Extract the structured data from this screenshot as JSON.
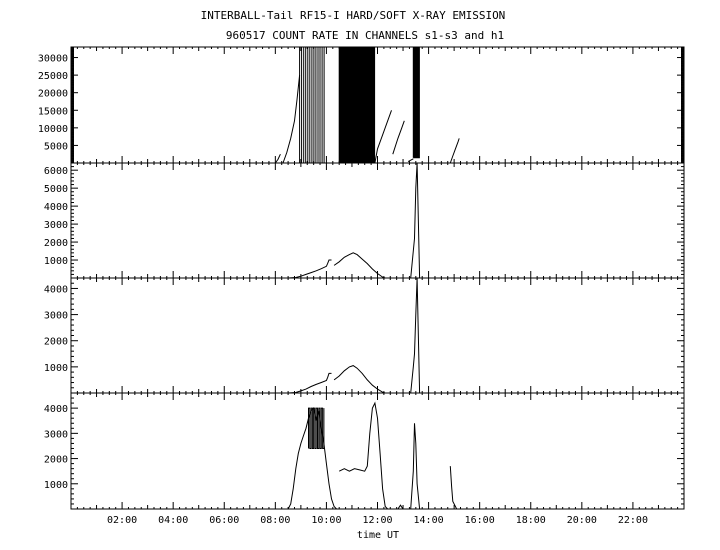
{
  "chart_data": {
    "type": "line",
    "title": "INTERBALL-Tail RF15-I HARD/SOFT X-RAY EMISSION",
    "subtitle": "960517  COUNT RATE IN CHANNELS s1-s3 and h1",
    "xlabel": "time UT",
    "x_unit": "hours UT",
    "xlim": [
      0,
      24
    ],
    "x_ticks": [
      {
        "value": 2,
        "label": "02:00"
      },
      {
        "value": 4,
        "label": "04:00"
      },
      {
        "value": 6,
        "label": "06:00"
      },
      {
        "value": 8,
        "label": "08:00"
      },
      {
        "value": 10,
        "label": "10:00"
      },
      {
        "value": 12,
        "label": "12:00"
      },
      {
        "value": 14,
        "label": "14:00"
      },
      {
        "value": 16,
        "label": "16:00"
      },
      {
        "value": 18,
        "label": "18:00"
      },
      {
        "value": 20,
        "label": "20:00"
      },
      {
        "value": 22,
        "label": "22:00"
      }
    ],
    "panels": [
      {
        "ylim": [
          0,
          33000
        ],
        "y_ticks": [
          5000,
          10000,
          15000,
          20000,
          25000,
          30000
        ],
        "segments": [
          [
            [
              8.0,
              0
            ],
            [
              8.1,
              1000
            ],
            [
              8.2,
              2500
            ]
          ],
          [
            [
              8.3,
              0
            ],
            [
              8.45,
              3000
            ],
            [
              8.6,
              7000
            ],
            [
              8.75,
              12000
            ],
            [
              8.85,
              18000
            ],
            [
              8.95,
              25000
            ]
          ],
          [
            [
              11.9,
              0
            ],
            [
              12.0,
              4000
            ],
            [
              12.2,
              8000
            ],
            [
              12.4,
              12000
            ],
            [
              12.55,
              15000
            ]
          ],
          [
            [
              12.6,
              2500
            ],
            [
              12.8,
              7000
            ],
            [
              12.95,
              10000
            ],
            [
              13.05,
              12000
            ]
          ],
          [
            [
              13.2,
              400
            ],
            [
              13.3,
              800
            ],
            [
              13.4,
              1200
            ]
          ],
          [
            [
              14.85,
              0
            ],
            [
              14.95,
              2000
            ],
            [
              15.05,
              4000
            ],
            [
              15.15,
              6000
            ],
            [
              15.2,
              7000
            ]
          ]
        ],
        "saturated_bands": [
          {
            "start": 8.95,
            "end": 9.95,
            "spacing": 0.08,
            "min": 0,
            "max": 33000
          },
          {
            "start": 10.5,
            "end": 11.9,
            "spacing": 0.018,
            "min": 0,
            "max": 33000
          },
          {
            "start": 13.4,
            "end": 13.65,
            "spacing": 0.02,
            "min": 1500,
            "max": 33000
          }
        ]
      },
      {
        "ylim": [
          0,
          6400
        ],
        "y_ticks": [
          1000,
          2000,
          3000,
          4000,
          5000,
          6000
        ],
        "segments": [
          [
            [
              8.5,
              0
            ],
            [
              8.8,
              30
            ],
            [
              9.0,
              100
            ],
            [
              9.2,
              200
            ],
            [
              9.4,
              300
            ],
            [
              9.6,
              400
            ],
            [
              9.8,
              520
            ],
            [
              10.0,
              650
            ],
            [
              10.05,
              820
            ],
            [
              10.1,
              1000
            ],
            [
              10.2,
              1000
            ]
          ],
          [
            [
              10.3,
              700
            ],
            [
              10.5,
              900
            ],
            [
              10.7,
              1150
            ],
            [
              10.9,
              1300
            ],
            [
              11.05,
              1400
            ],
            [
              11.2,
              1300
            ],
            [
              11.4,
              1050
            ],
            [
              11.6,
              800
            ],
            [
              11.8,
              500
            ],
            [
              12.0,
              250
            ],
            [
              12.2,
              50
            ],
            [
              12.3,
              0
            ]
          ],
          [
            [
              13.3,
              0
            ],
            [
              13.4,
              1500
            ],
            [
              13.45,
              2200
            ],
            [
              13.5,
              5000
            ],
            [
              13.55,
              6400
            ],
            [
              13.65,
              0
            ]
          ]
        ],
        "saturated_bands": []
      },
      {
        "ylim": [
          0,
          4400
        ],
        "y_ticks": [
          1000,
          2000,
          3000,
          4000
        ],
        "segments": [
          [
            [
              8.5,
              0
            ],
            [
              8.8,
              20
            ],
            [
              9.0,
              80
            ],
            [
              9.2,
              150
            ],
            [
              9.4,
              250
            ],
            [
              9.6,
              330
            ],
            [
              9.8,
              400
            ],
            [
              10.0,
              480
            ],
            [
              10.05,
              600
            ],
            [
              10.1,
              750
            ],
            [
              10.2,
              750
            ]
          ],
          [
            [
              10.3,
              500
            ],
            [
              10.5,
              650
            ],
            [
              10.7,
              850
            ],
            [
              10.9,
              1000
            ],
            [
              11.05,
              1050
            ],
            [
              11.2,
              950
            ],
            [
              11.4,
              750
            ],
            [
              11.6,
              500
            ],
            [
              11.8,
              300
            ],
            [
              12.0,
              150
            ],
            [
              12.2,
              30
            ],
            [
              12.3,
              0
            ]
          ],
          [
            [
              13.3,
              0
            ],
            [
              13.4,
              1000
            ],
            [
              13.45,
              1500
            ],
            [
              13.5,
              3000
            ],
            [
              13.55,
              4400
            ],
            [
              13.65,
              0
            ]
          ]
        ],
        "saturated_bands": []
      },
      {
        "ylim": [
          0,
          4600
        ],
        "y_ticks": [
          1000,
          2000,
          3000,
          4000
        ],
        "segments": [
          [
            [
              8.5,
              0
            ],
            [
              8.6,
              200
            ],
            [
              8.7,
              800
            ],
            [
              8.8,
              1600
            ],
            [
              8.9,
              2200
            ],
            [
              9.0,
              2600
            ],
            [
              9.1,
              2900
            ],
            [
              9.2,
              3200
            ],
            [
              9.3,
              3600
            ],
            [
              9.4,
              3900
            ],
            [
              9.5,
              4000
            ],
            [
              9.6,
              3500
            ],
            [
              9.7,
              3900
            ],
            [
              9.8,
              3200
            ],
            [
              9.9,
              2600
            ],
            [
              10.0,
              1800
            ],
            [
              10.1,
              1000
            ],
            [
              10.2,
              400
            ],
            [
              10.3,
              100
            ],
            [
              10.4,
              0
            ]
          ],
          [
            [
              10.5,
              1500
            ],
            [
              10.7,
              1600
            ],
            [
              10.9,
              1500
            ],
            [
              11.1,
              1600
            ],
            [
              11.3,
              1550
            ],
            [
              11.5,
              1500
            ],
            [
              11.6,
              1700
            ],
            [
              11.7,
              3000
            ],
            [
              11.8,
              4000
            ],
            [
              11.9,
              4200
            ],
            [
              12.0,
              3600
            ],
            [
              12.1,
              2200
            ],
            [
              12.2,
              800
            ],
            [
              12.3,
              100
            ],
            [
              12.4,
              0
            ]
          ],
          [
            [
              12.8,
              0
            ],
            [
              12.9,
              150
            ],
            [
              13.0,
              0
            ]
          ],
          [
            [
              13.3,
              0
            ],
            [
              13.4,
              1500
            ],
            [
              13.45,
              3400
            ],
            [
              13.5,
              2600
            ],
            [
              13.55,
              1000
            ],
            [
              13.65,
              0
            ]
          ],
          [
            [
              14.85,
              1700
            ],
            [
              14.9,
              900
            ],
            [
              14.95,
              300
            ],
            [
              15.05,
              100
            ],
            [
              15.1,
              0
            ]
          ]
        ],
        "saturated_bands": [
          {
            "start": 9.3,
            "end": 9.9,
            "spacing": 0.05,
            "min": 2400,
            "max": 4000
          }
        ]
      }
    ]
  }
}
